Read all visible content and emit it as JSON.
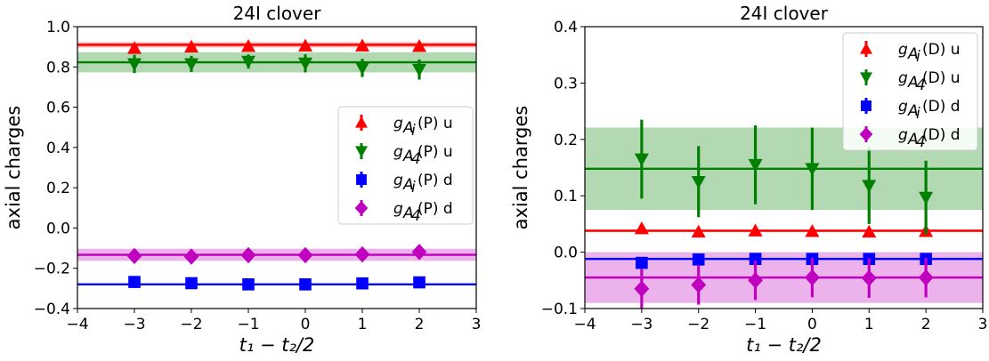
{
  "chart_data": [
    {
      "type": "scatter",
      "title": "24I clover",
      "xlabel": "t₁ − t₂/2",
      "ylabel": "axial charges",
      "xlim": [
        -4,
        3
      ],
      "ylim": [
        -0.4,
        1.0
      ],
      "xticks": [
        -4,
        -3,
        -2,
        -1,
        0,
        1,
        2,
        3
      ],
      "xtick_labels": [
        "−4",
        "−3",
        "−2",
        "−1",
        "0",
        "1",
        "2",
        "3"
      ],
      "yticks": [
        -0.4,
        -0.2,
        0.0,
        0.2,
        0.4,
        0.6,
        0.8,
        1.0
      ],
      "ytick_labels": [
        "−0.4",
        "−0.2",
        "0.0",
        "0.2",
        "0.4",
        "0.6",
        "0.8",
        "1.0"
      ],
      "legend_position": "center-right",
      "x": [
        -3,
        -2,
        -1,
        0,
        1,
        2
      ],
      "series": [
        {
          "name": "g_{A_i}(P) u",
          "legend_text": "(P) u",
          "sym": "g",
          "sub": "A",
          "subsub": "i",
          "color": "#ff0000",
          "marker": "triangle-up",
          "values": [
            0.893,
            0.9,
            0.903,
            0.905,
            0.905,
            0.903
          ],
          "errors": [
            0.02,
            0.02,
            0.02,
            0.02,
            0.02,
            0.02
          ],
          "fit": 0.91,
          "fit_err": 0.013
        },
        {
          "name": "g_{A_4}(P) u",
          "legend_text": "(P) u",
          "sym": "g",
          "sub": "A",
          "subsub": "4",
          "color": "#008000",
          "marker": "triangle-down",
          "values": [
            0.815,
            0.815,
            0.827,
            0.818,
            0.795,
            0.787
          ],
          "errors": [
            0.045,
            0.04,
            0.035,
            0.045,
            0.045,
            0.05
          ],
          "fit": 0.823,
          "fit_err": 0.05
        },
        {
          "name": "g_{A_i}(P) d",
          "legend_text": "(P) d",
          "sym": "g",
          "sub": "A",
          "subsub": "i",
          "color": "#0000ff",
          "marker": "square",
          "values": [
            -0.268,
            -0.274,
            -0.28,
            -0.28,
            -0.275,
            -0.27
          ],
          "errors": [
            0.01,
            0.01,
            0.01,
            0.01,
            0.01,
            0.01
          ],
          "fit": -0.28,
          "fit_err": 0.004
        },
        {
          "name": "g_{A_4}(P) d",
          "legend_text": "(P) d",
          "sym": "g",
          "sub": "A",
          "subsub": "4",
          "color": "#bf00bf",
          "marker": "diamond",
          "values": [
            -0.139,
            -0.142,
            -0.135,
            -0.135,
            -0.131,
            -0.119
          ],
          "errors": [
            0.015,
            0.015,
            0.015,
            0.015,
            0.015,
            0.015
          ],
          "fit": -0.133,
          "fit_err": 0.03
        }
      ]
    },
    {
      "type": "scatter",
      "title": "24I clover",
      "xlabel": "t₁ − t₂/2",
      "ylabel": "axial charges",
      "xlim": [
        -4,
        3
      ],
      "ylim": [
        -0.1,
        0.4
      ],
      "xticks": [
        -4,
        -3,
        -2,
        -1,
        0,
        1,
        2,
        3
      ],
      "xtick_labels": [
        "−4",
        "−3",
        "−2",
        "−1",
        "0",
        "1",
        "2",
        "3"
      ],
      "yticks": [
        -0.1,
        0.0,
        0.1,
        0.2,
        0.3,
        0.4
      ],
      "ytick_labels": [
        "−0.1",
        "0.0",
        "0.1",
        "0.2",
        "0.3",
        "0.4"
      ],
      "legend_position": "upper-right",
      "x": [
        -3,
        -2,
        -1,
        0,
        1,
        2
      ],
      "series": [
        {
          "name": "g_{A_i}(D) u",
          "legend_text": "(D) u",
          "sym": "g",
          "sub": "A",
          "subsub": "i",
          "color": "#ff0000",
          "marker": "triangle-up",
          "values": [
            0.042,
            0.036,
            0.038,
            0.037,
            0.036,
            0.037
          ],
          "errors": [
            0.004,
            0.004,
            0.004,
            0.004,
            0.004,
            0.004
          ],
          "fit": 0.038,
          "fit_err": 0.002
        },
        {
          "name": "g_{A_4}(D) u",
          "legend_text": "(D) u",
          "sym": "g",
          "sub": "A",
          "subsub": "4",
          "color": "#008000",
          "marker": "triangle-down",
          "values": [
            0.165,
            0.125,
            0.155,
            0.148,
            0.118,
            0.097
          ],
          "errors": [
            0.07,
            0.063,
            0.07,
            0.073,
            0.068,
            0.065
          ],
          "fit": 0.148,
          "fit_err": 0.073
        },
        {
          "name": "g_{A_i}(D) d",
          "legend_text": "(D) d",
          "sym": "g",
          "sub": "A",
          "subsub": "i",
          "color": "#0000ff",
          "marker": "square",
          "values": [
            -0.019,
            -0.013,
            -0.012,
            -0.012,
            -0.012,
            -0.012
          ],
          "errors": [
            0.006,
            0.005,
            0.005,
            0.005,
            0.005,
            0.005
          ],
          "fit": -0.012,
          "fit_err": 0.002
        },
        {
          "name": "g_{A_4}(D) d",
          "legend_text": "(D) d",
          "sym": "g",
          "sub": "A",
          "subsub": "4",
          "color": "#bf00bf",
          "marker": "diamond",
          "values": [
            -0.065,
            -0.058,
            -0.05,
            -0.045,
            -0.046,
            -0.045
          ],
          "errors": [
            0.035,
            0.035,
            0.035,
            0.035,
            0.035,
            0.035
          ],
          "fit": -0.045,
          "fit_err": 0.045
        }
      ]
    }
  ]
}
